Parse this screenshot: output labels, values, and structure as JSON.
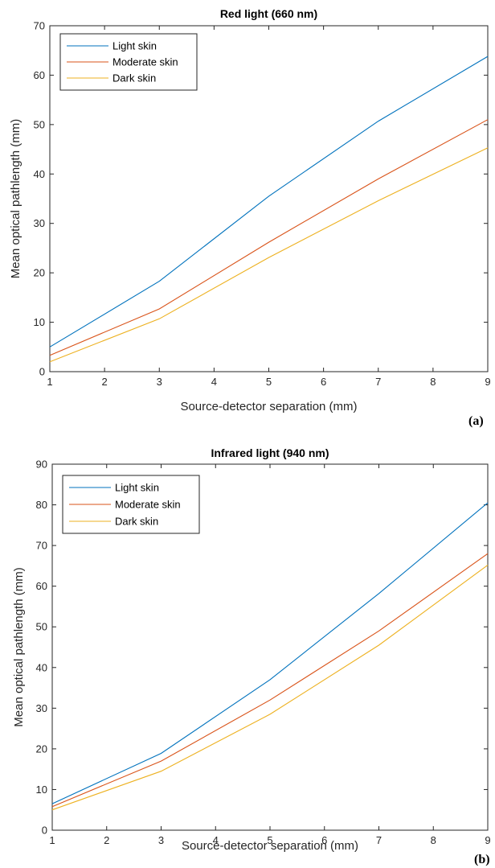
{
  "chart_data": [
    {
      "type": "line",
      "title": "Red light (660 nm)",
      "xlabel": "Source-detector separation (mm)",
      "ylabel": "Mean optical pathlength (mm)",
      "panel_label": "(a)",
      "xlim": [
        1,
        9
      ],
      "ylim": [
        0,
        70
      ],
      "xticks": [
        1,
        2,
        3,
        4,
        5,
        6,
        7,
        8,
        9
      ],
      "yticks": [
        0,
        10,
        20,
        30,
        40,
        50,
        60,
        70
      ],
      "grid": false,
      "legend_position": "top-left",
      "x": [
        1,
        3,
        5,
        7,
        9
      ],
      "series": [
        {
          "name": "Light skin",
          "color": "#0072BD",
          "values": [
            5.0,
            18.3,
            35.5,
            50.7,
            63.8
          ]
        },
        {
          "name": "Moderate skin",
          "color": "#D95319",
          "values": [
            3.3,
            12.7,
            26.2,
            39.0,
            51.0
          ]
        },
        {
          "name": "Dark skin",
          "color": "#EDB120",
          "values": [
            2.0,
            10.7,
            23.1,
            34.6,
            45.3
          ]
        }
      ]
    },
    {
      "type": "line",
      "title": "Infrared light (940 nm)",
      "xlabel": "Source-detector separation (mm)",
      "ylabel": "Mean optical pathlength (mm)",
      "panel_label": "(b)",
      "xlim": [
        1,
        9
      ],
      "ylim": [
        0,
        90
      ],
      "xticks": [
        1,
        2,
        3,
        4,
        5,
        6,
        7,
        8,
        9
      ],
      "yticks": [
        0,
        10,
        20,
        30,
        40,
        50,
        60,
        70,
        80,
        90
      ],
      "grid": false,
      "legend_position": "top-left",
      "x": [
        1,
        3,
        5,
        7,
        9
      ],
      "series": [
        {
          "name": "Light skin",
          "color": "#0072BD",
          "values": [
            6.5,
            18.9,
            37.0,
            58.2,
            80.5
          ]
        },
        {
          "name": "Moderate skin",
          "color": "#D95319",
          "values": [
            5.8,
            17.0,
            32.0,
            49.0,
            68.0
          ]
        },
        {
          "name": "Dark skin",
          "color": "#EDB120",
          "values": [
            5.0,
            14.5,
            28.5,
            45.5,
            65.2
          ]
        }
      ]
    }
  ]
}
